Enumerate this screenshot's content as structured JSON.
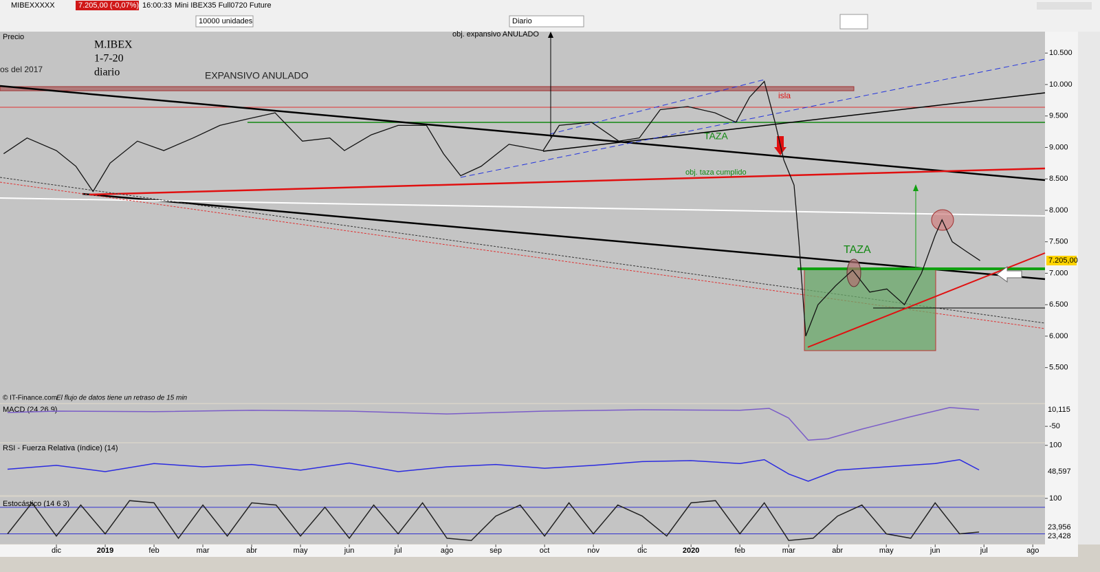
{
  "toolbar": {
    "symbol": "MIBEXXXXX",
    "quote": "7.205,00 (-0,07%)",
    "time": "16:00:33",
    "instrument": "Mini IBEX35 Full0720 Future",
    "units": "10000 unidades",
    "period": "Diario"
  },
  "chart_data": [
    {
      "type": "line",
      "title": "Precio",
      "annotations": [
        "M.IBEX",
        "1-7-20",
        "diario",
        "os del 2017",
        "EXPANSIVO  ANULADO",
        "obj. expansivo ANULADO",
        "isla",
        "TAZA",
        "obj. taza cumplido",
        "TAZA"
      ],
      "footer": [
        "© IT-Finance.com",
        "El flujo de datos tiene un retraso de 15 min"
      ],
      "last_label": "7.205,00",
      "xlim": [
        -1.155,
        20.25
      ],
      "xticks": [
        {
          "value": 0,
          "label": "dic"
        },
        {
          "value": 1,
          "label": "2019"
        },
        {
          "value": 2,
          "label": "feb"
        },
        {
          "value": 3,
          "label": "mar"
        },
        {
          "value": 4,
          "label": "abr"
        },
        {
          "value": 5,
          "label": "may"
        },
        {
          "value": 6,
          "label": "jun"
        },
        {
          "value": 7,
          "label": "jul"
        },
        {
          "value": 8,
          "label": "ago"
        },
        {
          "value": 9,
          "label": "sep"
        },
        {
          "value": 10,
          "label": "oct"
        },
        {
          "value": 11,
          "label": "nov"
        },
        {
          "value": 12,
          "label": "dic"
        },
        {
          "value": 13,
          "label": "2020"
        },
        {
          "value": 14,
          "label": "feb"
        },
        {
          "value": 15,
          "label": "mar"
        },
        {
          "value": 16,
          "label": "abr"
        },
        {
          "value": 17,
          "label": "may"
        },
        {
          "value": 18,
          "label": "jun"
        },
        {
          "value": 19,
          "label": "jul"
        },
        {
          "value": 20,
          "label": "ago"
        }
      ],
      "ylim": [
        4.95,
        10.83
      ],
      "yticks": [
        {
          "value": 10.5,
          "label": "10.500"
        },
        {
          "value": 10,
          "label": "10.000"
        },
        {
          "value": 9.5,
          "label": "9.500"
        },
        {
          "value": 9,
          "label": "9.000"
        },
        {
          "value": 8.5,
          "label": "8.500"
        },
        {
          "value": 8,
          "label": "8.000"
        },
        {
          "value": 7.5,
          "label": "7.500"
        },
        {
          "value": 7,
          "label": "7.000"
        },
        {
          "value": 6.5,
          "label": "6.500"
        },
        {
          "value": 6,
          "label": "6.000"
        },
        {
          "value": 5.5,
          "label": "5.500"
        }
      ],
      "series": [
        {
          "color": "#111111",
          "x": [
            -1.08,
            -0.6,
            0,
            0.4,
            0.75,
            1.1,
            1.66,
            2.2,
            2.8,
            3.35,
            3.9,
            4.48,
            5.04,
            5.6,
            5.9,
            6.45,
            7.0,
            7.58,
            7.93,
            8.28,
            8.7,
            9.27,
            9.97,
            10.3,
            10.96,
            11.52,
            11.94,
            12.37,
            12.93,
            13.49,
            13.92,
            14.2,
            14.5,
            14.72,
            14.9,
            15.11,
            15.21,
            15.35,
            15.6,
            15.96,
            16.31,
            16.66,
            17.01,
            17.37,
            17.72,
            18.0,
            18.14,
            18.35,
            18.63,
            18.92
          ],
          "values": [
            8.9,
            9.15,
            8.95,
            8.7,
            8.3,
            8.75,
            9.1,
            8.95,
            9.15,
            9.35,
            9.45,
            9.55,
            9.1,
            9.15,
            8.95,
            9.2,
            9.35,
            9.35,
            8.9,
            8.55,
            8.7,
            9.05,
            8.95,
            9.35,
            9.4,
            9.1,
            9.15,
            9.6,
            9.65,
            9.55,
            9.4,
            9.8,
            10.05,
            9.4,
            8.8,
            8.4,
            7.5,
            6.0,
            6.5,
            6.8,
            7.05,
            6.7,
            6.75,
            6.5,
            7.0,
            7.6,
            7.85,
            7.5,
            7.35,
            7.2
          ]
        }
      ]
    },
    {
      "type": "line",
      "title": "MACD (24 26 9)",
      "last_labels": [
        "10,115"
      ],
      "xlim": [
        -1.155,
        20.25
      ],
      "ylim": [
        -107,
        30
      ],
      "yticks": [
        -50
      ],
      "series": [
        {
          "color": "#7a5cc8",
          "x": [
            -1,
            0,
            2,
            4,
            6,
            8,
            10,
            12,
            14,
            14.6,
            15,
            15.4,
            15.8,
            16.5,
            17.5,
            18.3,
            18.9
          ],
          "values": [
            0,
            5,
            3,
            8,
            5,
            -5,
            5,
            10,
            8,
            15,
            -20,
            -100,
            -95,
            -60,
            -15,
            18,
            10
          ]
        }
      ]
    },
    {
      "type": "line",
      "title": "RSI - Fuerza Relativa (índice) (14)",
      "last_labels": [
        "48,597"
      ],
      "xlim": [
        -1.155,
        20.25
      ],
      "ylim": [
        -4,
        104
      ],
      "yticks": [
        100
      ],
      "series": [
        {
          "color": "#2a2ae0",
          "x": [
            -1,
            0,
            1,
            2,
            3,
            4,
            5,
            6,
            7,
            8,
            9,
            10,
            11,
            12,
            13,
            14,
            14.5,
            15,
            15.4,
            16,
            17,
            18,
            18.5,
            18.9
          ],
          "values": [
            50,
            58,
            45,
            62,
            55,
            60,
            48,
            63,
            45,
            55,
            60,
            52,
            58,
            66,
            68,
            62,
            70,
            40,
            25,
            48,
            55,
            62,
            70,
            48.6
          ]
        }
      ]
    },
    {
      "type": "line",
      "title": "Estocástico (14 6 3)",
      "last_labels": [
        "23,956",
        "23,428"
      ],
      "xlim": [
        -1.155,
        20.25
      ],
      "ylim": [
        -1,
        103
      ],
      "yticks": [
        100
      ],
      "hlines": [
        80,
        20
      ],
      "series": [
        {
          "color": "#222222",
          "x": [
            -1,
            -0.5,
            0,
            0.5,
            1,
            1.5,
            2,
            2.5,
            3,
            3.5,
            4,
            4.5,
            5,
            5.5,
            6,
            6.5,
            7,
            7.5,
            8,
            8.5,
            9,
            9.5,
            10,
            10.5,
            11,
            11.5,
            12,
            12.5,
            13,
            13.5,
            14,
            14.5,
            15,
            15.5,
            16,
            16.5,
            17,
            17.5,
            18,
            18.5,
            18.9
          ],
          "values": [
            20,
            90,
            15,
            85,
            20,
            95,
            90,
            10,
            85,
            15,
            90,
            85,
            15,
            80,
            10,
            85,
            20,
            90,
            10,
            5,
            60,
            85,
            15,
            90,
            20,
            85,
            60,
            15,
            90,
            95,
            20,
            90,
            5,
            10,
            60,
            85,
            20,
            10,
            90,
            20,
            24
          ]
        }
      ]
    }
  ]
}
